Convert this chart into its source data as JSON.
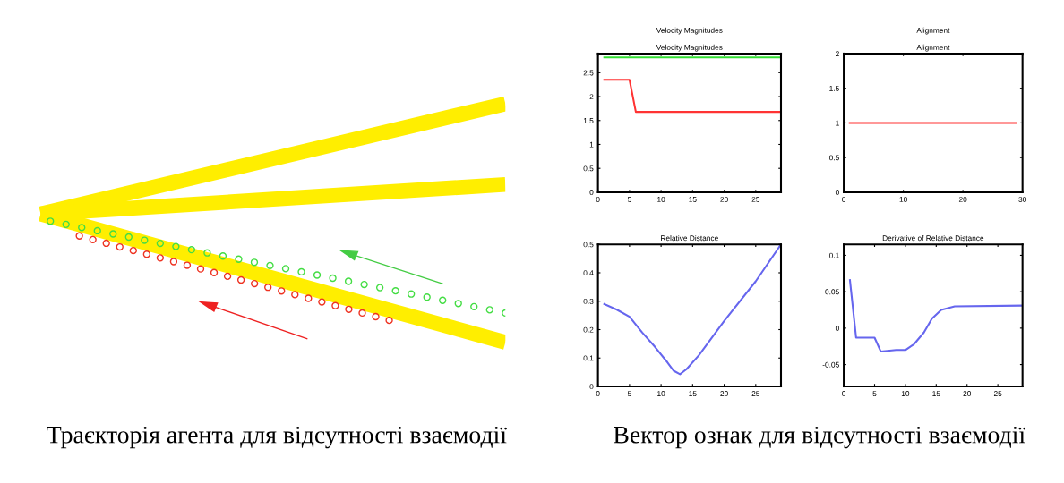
{
  "chart_data": [
    {
      "type": "other",
      "annotations": [
        "Траєкторія агента для відсутності взаємодії"
      ]
    },
    {
      "type": "line",
      "title": "Velocity Magnitudes",
      "subtitle": "Velocity Magnitudes",
      "xlim": [
        0,
        29
      ],
      "xticks": [
        0,
        5,
        10,
        15,
        20,
        25
      ],
      "ylim": [
        0,
        2.9
      ],
      "yticks": [
        0,
        0.5,
        1,
        1.5,
        2,
        2.5
      ],
      "grid": false,
      "series": [
        {
          "color": "#33e033",
          "x": [
            1,
            29
          ],
          "values": [
            2.82,
            2.82
          ]
        },
        {
          "color": "#ff3333",
          "x": [
            1,
            5,
            6,
            29
          ],
          "values": [
            2.35,
            2.35,
            1.68,
            1.68
          ]
        }
      ]
    },
    {
      "type": "line",
      "title": "Alignment",
      "subtitle": "Alignment",
      "xlim": [
        0,
        30
      ],
      "xticks": [
        0,
        10,
        20,
        30
      ],
      "ylim": [
        0,
        2
      ],
      "yticks": [
        0,
        0.5,
        1,
        1.5,
        2
      ],
      "grid": false,
      "series": [
        {
          "color": "#ff3333",
          "x": [
            1,
            29
          ],
          "values": [
            1,
            1
          ]
        }
      ]
    },
    {
      "type": "line",
      "title": "Relative Distance",
      "xlim": [
        0,
        29
      ],
      "xticks": [
        0,
        5,
        10,
        15,
        20,
        25
      ],
      "ylim": [
        0,
        0.5
      ],
      "yticks": [
        0,
        0.1,
        0.2,
        0.3,
        0.4,
        0.5
      ],
      "grid": false,
      "series": [
        {
          "color": "#6666ee",
          "x": [
            1,
            3,
            5,
            7,
            9,
            11,
            12,
            13,
            14,
            16,
            20,
            25,
            29
          ],
          "values": [
            0.29,
            0.27,
            0.245,
            0.19,
            0.14,
            0.085,
            0.055,
            0.043,
            0.06,
            0.11,
            0.23,
            0.37,
            0.5
          ]
        }
      ]
    },
    {
      "type": "line",
      "title": "Derivative of Relative Distance",
      "xlim": [
        0,
        29
      ],
      "xticks": [
        0,
        5,
        10,
        15,
        20,
        25
      ],
      "ylim": [
        -0.08,
        0.115
      ],
      "yticks": [
        -0.05,
        0,
        0.05,
        0.1
      ],
      "grid": false,
      "series": [
        {
          "color": "#6666ee",
          "x": [
            1,
            2,
            5,
            6,
            8.5,
            10,
            11.4,
            13,
            14.3,
            15.8,
            18,
            29
          ],
          "values": [
            0.066,
            -0.013,
            -0.013,
            -0.032,
            -0.03,
            -0.03,
            -0.022,
            -0.006,
            0.013,
            0.025,
            0.03,
            0.031
          ]
        }
      ]
    },
    {
      "type": "other",
      "annotations": [
        "Вектор ознак для відсутності взаємодії"
      ]
    }
  ]
}
